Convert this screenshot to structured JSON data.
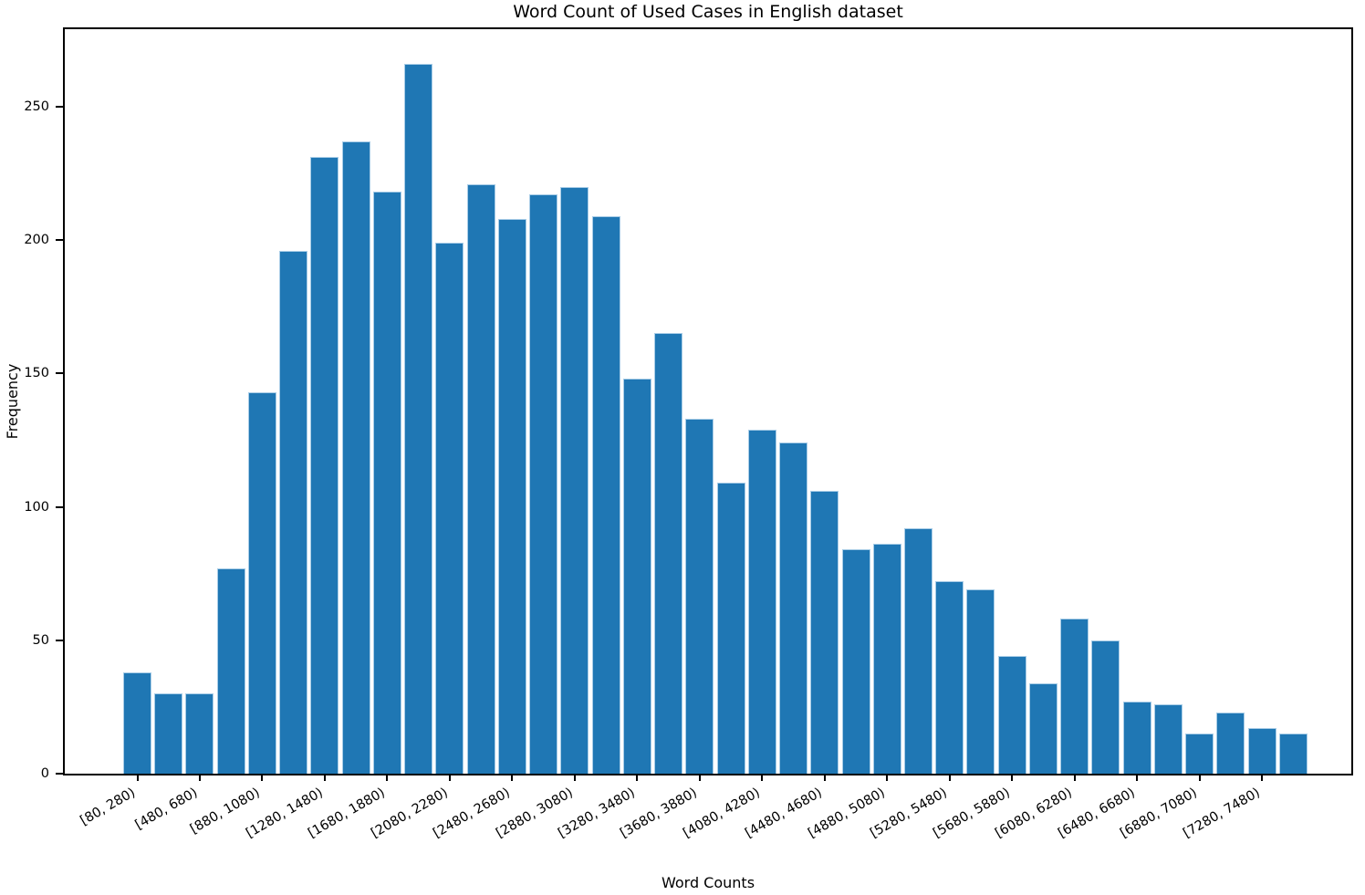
{
  "chart_data": {
    "type": "bar",
    "title": "Word Count of Used Cases in English dataset",
    "xlabel": "Word Counts",
    "ylabel": "Frequency",
    "ylim": [
      0,
      279
    ],
    "yticks": [
      0,
      50,
      100,
      150,
      200,
      250
    ],
    "grid": false,
    "legend": false,
    "bar_color": "#1f77b4",
    "bar_edge_color": "#a9cde7",
    "x_tick_label_rotation_deg": 30,
    "tick_step": 2,
    "x_tick_labels": [
      "[80, 280)",
      "[480, 680)",
      "[880, 1080)",
      "[1280, 1480)",
      "[1680, 1880)",
      "[2080, 2280)",
      "[2480, 2680)",
      "[2880, 3080)",
      "[3280, 3480)",
      "[3680, 3880)",
      "[4080, 4280)",
      "[4480, 4680)",
      "[4880, 5080)",
      "[5280, 5480)",
      "[5680, 5880)",
      "[6080, 6280)",
      "[6480, 6680)",
      "[6880, 7080)",
      "[7280, 7480)"
    ],
    "values": [
      38,
      30,
      30,
      77,
      143,
      196,
      231,
      237,
      218,
      266,
      199,
      221,
      208,
      217,
      220,
      209,
      148,
      165,
      133,
      109,
      129,
      124,
      106,
      84,
      86,
      92,
      72,
      69,
      44,
      34,
      58,
      50,
      27,
      26,
      15,
      23,
      17,
      15
    ]
  }
}
